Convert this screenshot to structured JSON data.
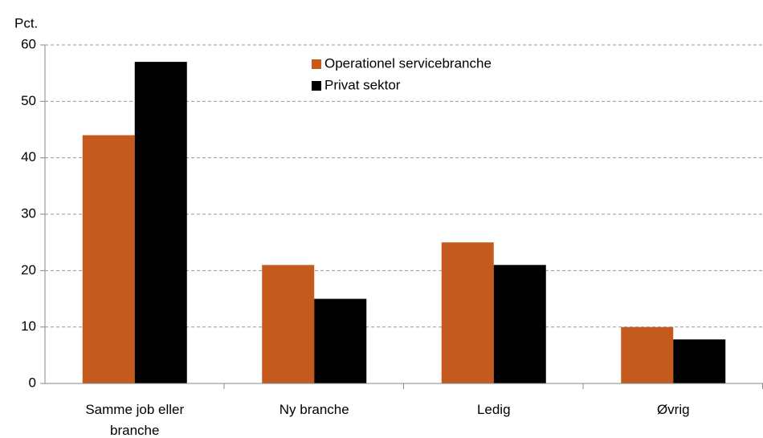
{
  "chart_data": {
    "type": "bar",
    "y_label": "Pct.",
    "categories": [
      "Samme job eller branche",
      "Ny branche",
      "Ledig",
      "Øvrig"
    ],
    "series": [
      {
        "name": "Operationel servicebranche",
        "color": "#c55a1e",
        "values": [
          44,
          21,
          25,
          10
        ]
      },
      {
        "name": "Privat sektor",
        "color": "#000000",
        "values": [
          57,
          15,
          21,
          7.8
        ]
      }
    ],
    "ylim": [
      0,
      60
    ],
    "yticks": [
      0,
      10,
      20,
      30,
      40,
      50,
      60
    ],
    "grid": true
  }
}
